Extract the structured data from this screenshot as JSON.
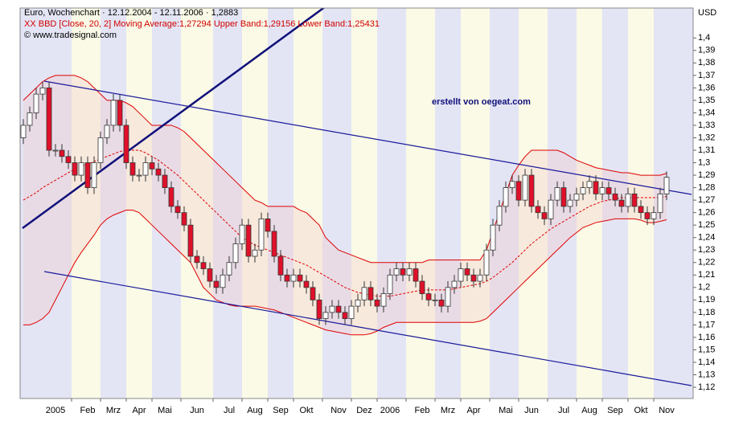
{
  "chart_data": {
    "type": "candlestick",
    "title": "Euro, Wochenchart · 12.12.2004 - 12.11.2006 · 1,2883",
    "subtitle": "XX BBD [Close, 20, 2] Moving Average:1,27294 Upper Band:1,29156 Lower Band:1,25431",
    "source": "© www.tradesignal.com",
    "y_axis_label": "USD",
    "annotation": "erstellt von oegeat.com",
    "up_color": "#ffffff",
    "down_color": "#e0102a",
    "ylim": [
      1.111,
      1.424
    ],
    "yticks": [
      {
        "value": 1.4,
        "label": "1,4"
      },
      {
        "value": 1.39,
        "label": "1,39"
      },
      {
        "value": 1.38,
        "label": "1,38"
      },
      {
        "value": 1.37,
        "label": "1,37"
      },
      {
        "value": 1.36,
        "label": "1,36"
      },
      {
        "value": 1.35,
        "label": "1,35"
      },
      {
        "value": 1.34,
        "label": "1,34"
      },
      {
        "value": 1.33,
        "label": "1,33"
      },
      {
        "value": 1.32,
        "label": "1,32"
      },
      {
        "value": 1.31,
        "label": "1,31"
      },
      {
        "value": 1.3,
        "label": "1,3"
      },
      {
        "value": 1.29,
        "label": "1,29"
      },
      {
        "value": 1.28,
        "label": "1,28"
      },
      {
        "value": 1.27,
        "label": "1,27"
      },
      {
        "value": 1.26,
        "label": "1,26"
      },
      {
        "value": 1.25,
        "label": "1,25"
      },
      {
        "value": 1.24,
        "label": "1,24"
      },
      {
        "value": 1.23,
        "label": "1,23"
      },
      {
        "value": 1.22,
        "label": "1,22"
      },
      {
        "value": 1.21,
        "label": "1,21"
      },
      {
        "value": 1.2,
        "label": "1,2"
      },
      {
        "value": 1.19,
        "label": "1,19"
      },
      {
        "value": 1.18,
        "label": "1,18"
      },
      {
        "value": 1.17,
        "label": "1,17"
      },
      {
        "value": 1.16,
        "label": "1,16"
      },
      {
        "value": 1.15,
        "label": "1,15"
      },
      {
        "value": 1.14,
        "label": "1,14"
      },
      {
        "value": 1.13,
        "label": "1,13"
      },
      {
        "value": 1.12,
        "label": "1,12"
      }
    ],
    "categories": [
      null,
      null,
      null,
      null,
      null,
      "2005",
      null,
      null,
      null,
      null,
      "Feb",
      null,
      null,
      null,
      "Mrz",
      null,
      null,
      null,
      "Apr",
      null,
      null,
      null,
      "Mai",
      null,
      null,
      null,
      null,
      "Jun",
      null,
      null,
      null,
      null,
      "Jul",
      null,
      null,
      null,
      "Aug",
      null,
      null,
      null,
      "Sep",
      null,
      null,
      null,
      "Okt",
      null,
      null,
      null,
      null,
      "Nov",
      null,
      null,
      null,
      "Dez",
      null,
      null,
      null,
      "2006",
      null,
      null,
      null,
      null,
      "Feb",
      null,
      null,
      null,
      "Mrz",
      null,
      null,
      null,
      "Apr",
      null,
      null,
      null,
      null,
      "Mai",
      null,
      null,
      null,
      "Jun",
      null,
      null,
      null,
      null,
      "Jul",
      null,
      null,
      null,
      "Aug",
      null,
      null,
      null,
      "Sep",
      null,
      null,
      null,
      "Okt",
      null,
      null,
      null,
      "Nov"
    ],
    "open": [
      1.32,
      1.33,
      1.34,
      1.355,
      1.36,
      1.31,
      1.31,
      1.305,
      1.3,
      1.29,
      1.3,
      1.28,
      1.3,
      1.32,
      1.33,
      1.35,
      1.33,
      1.3,
      1.29,
      1.29,
      1.3,
      1.295,
      1.29,
      1.28,
      1.265,
      1.26,
      1.25,
      1.225,
      1.22,
      1.215,
      1.205,
      1.2,
      1.21,
      1.22,
      1.235,
      1.25,
      1.225,
      1.23,
      1.255,
      1.245,
      1.225,
      1.21,
      1.205,
      1.21,
      1.205,
      1.2,
      1.19,
      1.175,
      1.18,
      1.185,
      1.18,
      1.175,
      1.185,
      1.19,
      1.2,
      1.19,
      1.185,
      1.195,
      1.21,
      1.215,
      1.21,
      1.215,
      1.205,
      1.195,
      1.19,
      1.19,
      1.185,
      1.2,
      1.205,
      1.215,
      1.21,
      1.205,
      1.21,
      1.23,
      1.25,
      1.265,
      1.28,
      1.285,
      1.27,
      1.29,
      1.265,
      1.26,
      1.255,
      1.27,
      1.28,
      1.265,
      1.27,
      1.275,
      1.28,
      1.285,
      1.275,
      1.28,
      1.275,
      1.27,
      1.265,
      1.275,
      1.265,
      1.26,
      1.255,
      1.26,
      1.275
    ],
    "high": [
      1.335,
      1.345,
      1.36,
      1.365,
      1.365,
      1.315,
      1.315,
      1.31,
      1.305,
      1.305,
      1.305,
      1.305,
      1.325,
      1.335,
      1.355,
      1.355,
      1.335,
      1.305,
      1.295,
      1.305,
      1.305,
      1.3,
      1.295,
      1.285,
      1.27,
      1.265,
      1.255,
      1.23,
      1.225,
      1.22,
      1.21,
      1.215,
      1.225,
      1.24,
      1.255,
      1.255,
      1.235,
      1.26,
      1.26,
      1.25,
      1.23,
      1.215,
      1.215,
      1.215,
      1.21,
      1.205,
      1.195,
      1.185,
      1.19,
      1.19,
      1.185,
      1.19,
      1.195,
      1.205,
      1.205,
      1.195,
      1.2,
      1.215,
      1.22,
      1.22,
      1.22,
      1.22,
      1.21,
      1.2,
      1.195,
      1.195,
      1.205,
      1.21,
      1.22,
      1.22,
      1.215,
      1.215,
      1.235,
      1.255,
      1.27,
      1.285,
      1.29,
      1.29,
      1.295,
      1.295,
      1.27,
      1.265,
      1.275,
      1.285,
      1.285,
      1.275,
      1.28,
      1.285,
      1.29,
      1.29,
      1.285,
      1.285,
      1.28,
      1.275,
      1.28,
      1.28,
      1.27,
      1.265,
      1.265,
      1.28,
      1.293
    ],
    "low": [
      1.315,
      1.325,
      1.335,
      1.35,
      1.305,
      1.305,
      1.3,
      1.295,
      1.285,
      1.285,
      1.275,
      1.275,
      1.295,
      1.315,
      1.325,
      1.325,
      1.295,
      1.285,
      1.285,
      1.285,
      1.29,
      1.285,
      1.275,
      1.26,
      1.255,
      1.245,
      1.22,
      1.215,
      1.21,
      1.2,
      1.195,
      1.195,
      1.205,
      1.215,
      1.23,
      1.22,
      1.22,
      1.225,
      1.24,
      1.22,
      1.205,
      1.2,
      1.2,
      1.2,
      1.195,
      1.185,
      1.17,
      1.17,
      1.175,
      1.175,
      1.17,
      1.17,
      1.18,
      1.185,
      1.185,
      1.18,
      1.18,
      1.19,
      1.205,
      1.205,
      1.205,
      1.2,
      1.19,
      1.185,
      1.185,
      1.18,
      1.18,
      1.195,
      1.2,
      1.205,
      1.2,
      1.2,
      1.205,
      1.225,
      1.245,
      1.26,
      1.275,
      1.265,
      1.265,
      1.26,
      1.255,
      1.25,
      1.25,
      1.265,
      1.26,
      1.26,
      1.265,
      1.27,
      1.275,
      1.27,
      1.27,
      1.27,
      1.265,
      1.26,
      1.26,
      1.26,
      1.255,
      1.25,
      1.25,
      1.255,
      1.27
    ],
    "close": [
      1.33,
      1.34,
      1.355,
      1.36,
      1.31,
      1.31,
      1.305,
      1.3,
      1.29,
      1.3,
      1.28,
      1.3,
      1.32,
      1.33,
      1.35,
      1.33,
      1.3,
      1.29,
      1.29,
      1.3,
      1.295,
      1.29,
      1.28,
      1.265,
      1.26,
      1.25,
      1.225,
      1.22,
      1.215,
      1.205,
      1.2,
      1.21,
      1.22,
      1.235,
      1.25,
      1.225,
      1.23,
      1.255,
      1.245,
      1.225,
      1.21,
      1.205,
      1.21,
      1.205,
      1.2,
      1.19,
      1.175,
      1.18,
      1.185,
      1.18,
      1.175,
      1.185,
      1.19,
      1.2,
      1.19,
      1.185,
      1.195,
      1.21,
      1.215,
      1.21,
      1.215,
      1.205,
      1.195,
      1.19,
      1.19,
      1.185,
      1.2,
      1.205,
      1.215,
      1.21,
      1.205,
      1.21,
      1.23,
      1.25,
      1.265,
      1.28,
      1.285,
      1.27,
      1.29,
      1.265,
      1.26,
      1.255,
      1.27,
      1.28,
      1.265,
      1.27,
      1.275,
      1.28,
      1.285,
      1.275,
      1.28,
      1.275,
      1.27,
      1.265,
      1.275,
      1.265,
      1.26,
      1.255,
      1.26,
      1.275,
      1.2883
    ],
    "series": [
      {
        "color": "#e00000",
        "values": [
          1.35,
          1.355,
          1.36,
          1.365,
          1.368,
          1.37,
          1.37,
          1.37,
          1.37,
          1.368,
          1.365,
          1.36,
          1.355,
          1.35,
          1.35,
          1.35,
          1.348,
          1.345,
          1.34,
          1.335,
          1.33,
          1.33,
          1.33,
          1.33,
          1.328,
          1.325,
          1.32,
          1.315,
          1.31,
          1.305,
          1.3,
          1.295,
          1.29,
          1.285,
          1.28,
          1.275,
          1.27,
          1.268,
          1.265,
          1.265,
          1.265,
          1.265,
          1.265,
          1.262,
          1.26,
          1.255,
          1.25,
          1.24,
          1.235,
          1.23,
          1.228,
          1.226,
          1.224,
          1.222,
          1.22,
          1.22,
          1.22,
          1.22,
          1.22,
          1.22,
          1.22,
          1.22,
          1.22,
          1.222,
          1.222,
          1.222,
          1.222,
          1.222,
          1.222,
          1.222,
          1.222,
          1.222,
          1.23,
          1.245,
          1.26,
          1.275,
          1.29,
          1.298,
          1.305,
          1.31,
          1.31,
          1.31,
          1.31,
          1.31,
          1.308,
          1.305,
          1.302,
          1.3,
          1.298,
          1.296,
          1.295,
          1.294,
          1.293,
          1.292,
          1.292,
          1.291,
          1.29,
          1.29,
          1.29,
          1.29,
          1.29156
        ]
      },
      {
        "color": "#e00000",
        "dashed": true,
        "values": [
          1.27,
          1.273,
          1.276,
          1.28,
          1.283,
          1.286,
          1.289,
          1.292,
          1.295,
          1.297,
          1.299,
          1.301,
          1.303,
          1.305,
          1.307,
          1.309,
          1.31,
          1.31,
          1.31,
          1.308,
          1.305,
          1.302,
          1.298,
          1.294,
          1.29,
          1.285,
          1.28,
          1.275,
          1.27,
          1.265,
          1.26,
          1.255,
          1.25,
          1.245,
          1.24,
          1.237,
          1.234,
          1.232,
          1.23,
          1.228,
          1.226,
          1.224,
          1.222,
          1.22,
          1.218,
          1.215,
          1.212,
          1.209,
          1.206,
          1.203,
          1.2,
          1.198,
          1.196,
          1.195,
          1.194,
          1.193,
          1.193,
          1.193,
          1.194,
          1.195,
          1.196,
          1.197,
          1.198,
          1.198,
          1.198,
          1.198,
          1.198,
          1.199,
          1.2,
          1.201,
          1.202,
          1.203,
          1.205,
          1.208,
          1.212,
          1.216,
          1.22,
          1.225,
          1.23,
          1.235,
          1.239,
          1.243,
          1.247,
          1.25,
          1.253,
          1.256,
          1.259,
          1.262,
          1.265,
          1.267,
          1.269,
          1.27,
          1.271,
          1.272,
          1.272,
          1.272,
          1.272,
          1.272,
          1.272,
          1.272,
          1.27294
        ]
      },
      {
        "color": "#e00000",
        "values": [
          1.17,
          1.17,
          1.172,
          1.175,
          1.18,
          1.19,
          1.2,
          1.21,
          1.22,
          1.228,
          1.235,
          1.242,
          1.25,
          1.255,
          1.258,
          1.26,
          1.262,
          1.262,
          1.26,
          1.255,
          1.25,
          1.245,
          1.24,
          1.235,
          1.23,
          1.225,
          1.22,
          1.21,
          1.2,
          1.195,
          1.19,
          1.188,
          1.186,
          1.185,
          1.185,
          1.185,
          1.185,
          1.184,
          1.183,
          1.182,
          1.18,
          1.178,
          1.176,
          1.174,
          1.172,
          1.17,
          1.168,
          1.166,
          1.165,
          1.164,
          1.163,
          1.162,
          1.162,
          1.162,
          1.163,
          1.165,
          1.168,
          1.17,
          1.172,
          1.172,
          1.172,
          1.172,
          1.172,
          1.172,
          1.172,
          1.172,
          1.172,
          1.172,
          1.172,
          1.172,
          1.172,
          1.173,
          1.175,
          1.18,
          1.185,
          1.19,
          1.195,
          1.2,
          1.205,
          1.21,
          1.215,
          1.22,
          1.225,
          1.23,
          1.235,
          1.24,
          1.244,
          1.248,
          1.25,
          1.252,
          1.253,
          1.254,
          1.255,
          1.255,
          1.255,
          1.255,
          1.254,
          1.252,
          1.252,
          1.253,
          1.25431
        ]
      }
    ],
    "band_fill": "rgba(240,200,200,0.35)",
    "stripe_colors": [
      "#e3e5f5",
      "#fafae6"
    ]
  }
}
